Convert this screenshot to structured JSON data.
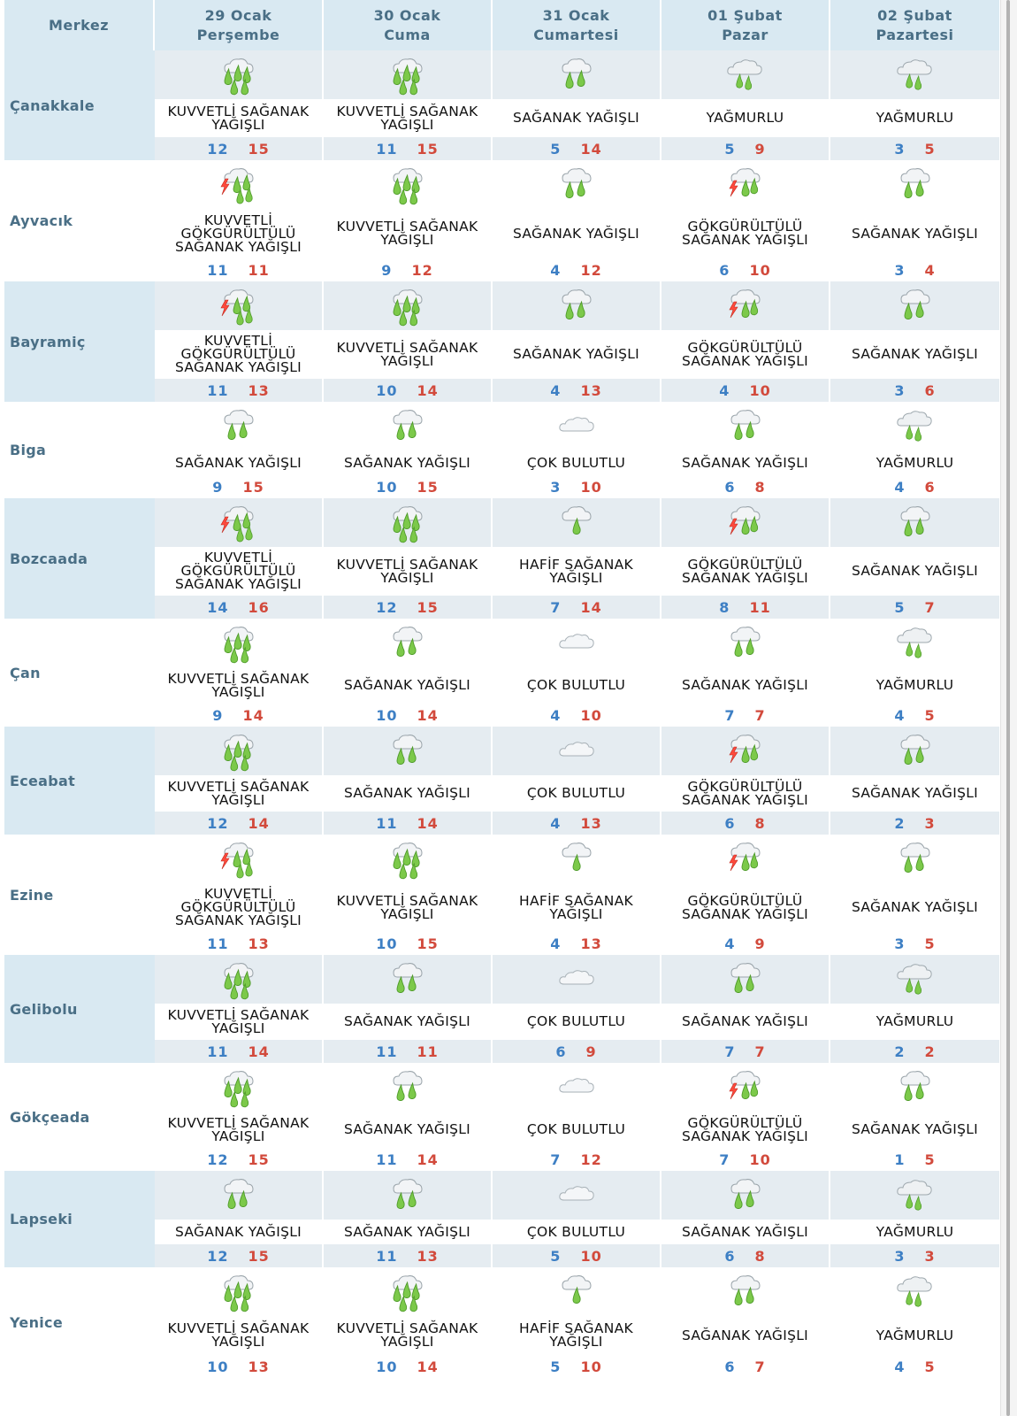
{
  "header": {
    "merkez": "Merkez",
    "days": [
      {
        "date": "29 Ocak",
        "weekday": "Perşembe"
      },
      {
        "date": "30 Ocak",
        "weekday": "Cuma"
      },
      {
        "date": "31 Ocak",
        "weekday": "Cumartesi"
      },
      {
        "date": "01 Şubat",
        "weekday": "Pazar"
      },
      {
        "date": "02 Şubat",
        "weekday": "Pazartesi"
      }
    ]
  },
  "colors": {
    "min": "#3d7fc4",
    "max": "#d24a3c",
    "header_bg": "#d9e9f2",
    "city_text": "#4a6f86"
  },
  "cities": [
    {
      "name": "Çanakkale",
      "days": [
        {
          "icon": "heavy-shower-icon",
          "desc": "KUVVETLİ SAĞANAK YAĞIŞLI",
          "min": "12",
          "max": "15"
        },
        {
          "icon": "heavy-shower-icon",
          "desc": "KUVVETLİ SAĞANAK YAĞIŞLI",
          "min": "11",
          "max": "15"
        },
        {
          "icon": "shower-icon",
          "desc": "SAĞANAK YAĞIŞLI",
          "min": "5",
          "max": "14"
        },
        {
          "icon": "rain-icon",
          "desc": "YAĞMURLU",
          "min": "5",
          "max": "9"
        },
        {
          "icon": "rain-icon",
          "desc": "YAĞMURLU",
          "min": "3",
          "max": "5"
        }
      ]
    },
    {
      "name": "Ayvacık",
      "days": [
        {
          "icon": "heavy-thunder-shower-icon",
          "desc": "KUVVETLİ GÖKGÜRÜLTÜLÜ SAĞANAK YAĞIŞLI",
          "min": "11",
          "max": "11"
        },
        {
          "icon": "heavy-shower-icon",
          "desc": "KUVVETLİ SAĞANAK YAĞIŞLI",
          "min": "9",
          "max": "12"
        },
        {
          "icon": "shower-icon",
          "desc": "SAĞANAK YAĞIŞLI",
          "min": "4",
          "max": "12"
        },
        {
          "icon": "thunder-shower-icon",
          "desc": "GÖKGÜRÜLTÜLÜ SAĞANAK YAĞIŞLI",
          "min": "6",
          "max": "10"
        },
        {
          "icon": "shower-icon",
          "desc": "SAĞANAK YAĞIŞLI",
          "min": "3",
          "max": "4"
        }
      ]
    },
    {
      "name": "Bayramiç",
      "days": [
        {
          "icon": "heavy-thunder-shower-icon",
          "desc": "KUVVETLİ GÖKGÜRÜLTÜLÜ SAĞANAK YAĞIŞLI",
          "min": "11",
          "max": "13"
        },
        {
          "icon": "heavy-shower-icon",
          "desc": "KUVVETLİ SAĞANAK YAĞIŞLI",
          "min": "10",
          "max": "14"
        },
        {
          "icon": "shower-icon",
          "desc": "SAĞANAK YAĞIŞLI",
          "min": "4",
          "max": "13"
        },
        {
          "icon": "thunder-shower-icon",
          "desc": "GÖKGÜRÜLTÜLÜ SAĞANAK YAĞIŞLI",
          "min": "4",
          "max": "10"
        },
        {
          "icon": "shower-icon",
          "desc": "SAĞANAK YAĞIŞLI",
          "min": "3",
          "max": "6"
        }
      ]
    },
    {
      "name": "Biga",
      "days": [
        {
          "icon": "shower-icon",
          "desc": "SAĞANAK YAĞIŞLI",
          "min": "9",
          "max": "15"
        },
        {
          "icon": "shower-icon",
          "desc": "SAĞANAK YAĞIŞLI",
          "min": "10",
          "max": "15"
        },
        {
          "icon": "cloudy-icon",
          "desc": "ÇOK BULUTLU",
          "min": "3",
          "max": "10"
        },
        {
          "icon": "shower-icon",
          "desc": "SAĞANAK YAĞIŞLI",
          "min": "6",
          "max": "8"
        },
        {
          "icon": "rain-icon",
          "desc": "YAĞMURLU",
          "min": "4",
          "max": "6"
        }
      ]
    },
    {
      "name": "Bozcaada",
      "days": [
        {
          "icon": "heavy-thunder-shower-icon",
          "desc": "KUVVETLİ GÖKGÜRÜLTÜLÜ SAĞANAK YAĞIŞLI",
          "min": "14",
          "max": "16"
        },
        {
          "icon": "heavy-shower-icon",
          "desc": "KUVVETLİ SAĞANAK YAĞIŞLI",
          "min": "12",
          "max": "15"
        },
        {
          "icon": "light-shower-icon",
          "desc": "HAFİF SAĞANAK YAĞIŞLI",
          "min": "7",
          "max": "14"
        },
        {
          "icon": "thunder-shower-icon",
          "desc": "GÖKGÜRÜLTÜLÜ SAĞANAK YAĞIŞLI",
          "min": "8",
          "max": "11"
        },
        {
          "icon": "shower-icon",
          "desc": "SAĞANAK YAĞIŞLI",
          "min": "5",
          "max": "7"
        }
      ]
    },
    {
      "name": "Çan",
      "days": [
        {
          "icon": "heavy-shower-icon",
          "desc": "KUVVETLİ SAĞANAK YAĞIŞLI",
          "min": "9",
          "max": "14"
        },
        {
          "icon": "shower-icon",
          "desc": "SAĞANAK YAĞIŞLI",
          "min": "10",
          "max": "14"
        },
        {
          "icon": "cloudy-icon",
          "desc": "ÇOK BULUTLU",
          "min": "4",
          "max": "10"
        },
        {
          "icon": "shower-icon",
          "desc": "SAĞANAK YAĞIŞLI",
          "min": "7",
          "max": "7"
        },
        {
          "icon": "rain-icon",
          "desc": "YAĞMURLU",
          "min": "4",
          "max": "5"
        }
      ]
    },
    {
      "name": "Eceabat",
      "days": [
        {
          "icon": "heavy-shower-icon",
          "desc": "KUVVETLİ SAĞANAK YAĞIŞLI",
          "min": "12",
          "max": "14"
        },
        {
          "icon": "shower-icon",
          "desc": "SAĞANAK YAĞIŞLI",
          "min": "11",
          "max": "14"
        },
        {
          "icon": "cloudy-icon",
          "desc": "ÇOK BULUTLU",
          "min": "4",
          "max": "13"
        },
        {
          "icon": "thunder-shower-icon",
          "desc": "GÖKGÜRÜLTÜLÜ SAĞANAK YAĞIŞLI",
          "min": "6",
          "max": "8"
        },
        {
          "icon": "shower-icon",
          "desc": "SAĞANAK YAĞIŞLI",
          "min": "2",
          "max": "3"
        }
      ]
    },
    {
      "name": "Ezine",
      "days": [
        {
          "icon": "heavy-thunder-shower-icon",
          "desc": "KUVVETLİ GÖKGÜRÜLTÜLÜ SAĞANAK YAĞIŞLI",
          "min": "11",
          "max": "13"
        },
        {
          "icon": "heavy-shower-icon",
          "desc": "KUVVETLİ SAĞANAK YAĞIŞLI",
          "min": "10",
          "max": "15"
        },
        {
          "icon": "light-shower-icon",
          "desc": "HAFİF SAĞANAK YAĞIŞLI",
          "min": "4",
          "max": "13"
        },
        {
          "icon": "thunder-shower-icon",
          "desc": "GÖKGÜRÜLTÜLÜ SAĞANAK YAĞIŞLI",
          "min": "4",
          "max": "9"
        },
        {
          "icon": "shower-icon",
          "desc": "SAĞANAK YAĞIŞLI",
          "min": "3",
          "max": "5"
        }
      ]
    },
    {
      "name": "Gelibolu",
      "days": [
        {
          "icon": "heavy-shower-icon",
          "desc": "KUVVETLİ SAĞANAK YAĞIŞLI",
          "min": "11",
          "max": "14"
        },
        {
          "icon": "shower-icon",
          "desc": "SAĞANAK YAĞIŞLI",
          "min": "11",
          "max": "11"
        },
        {
          "icon": "cloudy-icon",
          "desc": "ÇOK BULUTLU",
          "min": "6",
          "max": "9"
        },
        {
          "icon": "shower-icon",
          "desc": "SAĞANAK YAĞIŞLI",
          "min": "7",
          "max": "7"
        },
        {
          "icon": "rain-icon",
          "desc": "YAĞMURLU",
          "min": "2",
          "max": "2"
        }
      ]
    },
    {
      "name": "Gökçeada",
      "days": [
        {
          "icon": "heavy-shower-icon",
          "desc": "KUVVETLİ SAĞANAK YAĞIŞLI",
          "min": "12",
          "max": "15"
        },
        {
          "icon": "shower-icon",
          "desc": "SAĞANAK YAĞIŞLI",
          "min": "11",
          "max": "14"
        },
        {
          "icon": "cloudy-icon",
          "desc": "ÇOK BULUTLU",
          "min": "7",
          "max": "12"
        },
        {
          "icon": "thunder-shower-icon",
          "desc": "GÖKGÜRÜLTÜLÜ SAĞANAK YAĞIŞLI",
          "min": "7",
          "max": "10"
        },
        {
          "icon": "shower-icon",
          "desc": "SAĞANAK YAĞIŞLI",
          "min": "1",
          "max": "5"
        }
      ]
    },
    {
      "name": "Lapseki",
      "days": [
        {
          "icon": "shower-icon",
          "desc": "SAĞANAK YAĞIŞLI",
          "min": "12",
          "max": "15"
        },
        {
          "icon": "shower-icon",
          "desc": "SAĞANAK YAĞIŞLI",
          "min": "11",
          "max": "13"
        },
        {
          "icon": "cloudy-icon",
          "desc": "ÇOK BULUTLU",
          "min": "5",
          "max": "10"
        },
        {
          "icon": "shower-icon",
          "desc": "SAĞANAK YAĞIŞLI",
          "min": "6",
          "max": "8"
        },
        {
          "icon": "rain-icon",
          "desc": "YAĞMURLU",
          "min": "3",
          "max": "3"
        }
      ]
    },
    {
      "name": "Yenice",
      "days": [
        {
          "icon": "heavy-shower-icon",
          "desc": "KUVVETLİ SAĞANAK YAĞIŞLI",
          "min": "10",
          "max": "13"
        },
        {
          "icon": "heavy-shower-icon",
          "desc": "KUVVETLİ SAĞANAK YAĞIŞLI",
          "min": "10",
          "max": "14"
        },
        {
          "icon": "light-shower-icon",
          "desc": "HAFİF SAĞANAK YAĞIŞLI",
          "min": "5",
          "max": "10"
        },
        {
          "icon": "shower-icon",
          "desc": "SAĞANAK YAĞIŞLI",
          "min": "6",
          "max": "7"
        },
        {
          "icon": "rain-icon",
          "desc": "YAĞMURLU",
          "min": "4",
          "max": "5"
        }
      ]
    }
  ]
}
